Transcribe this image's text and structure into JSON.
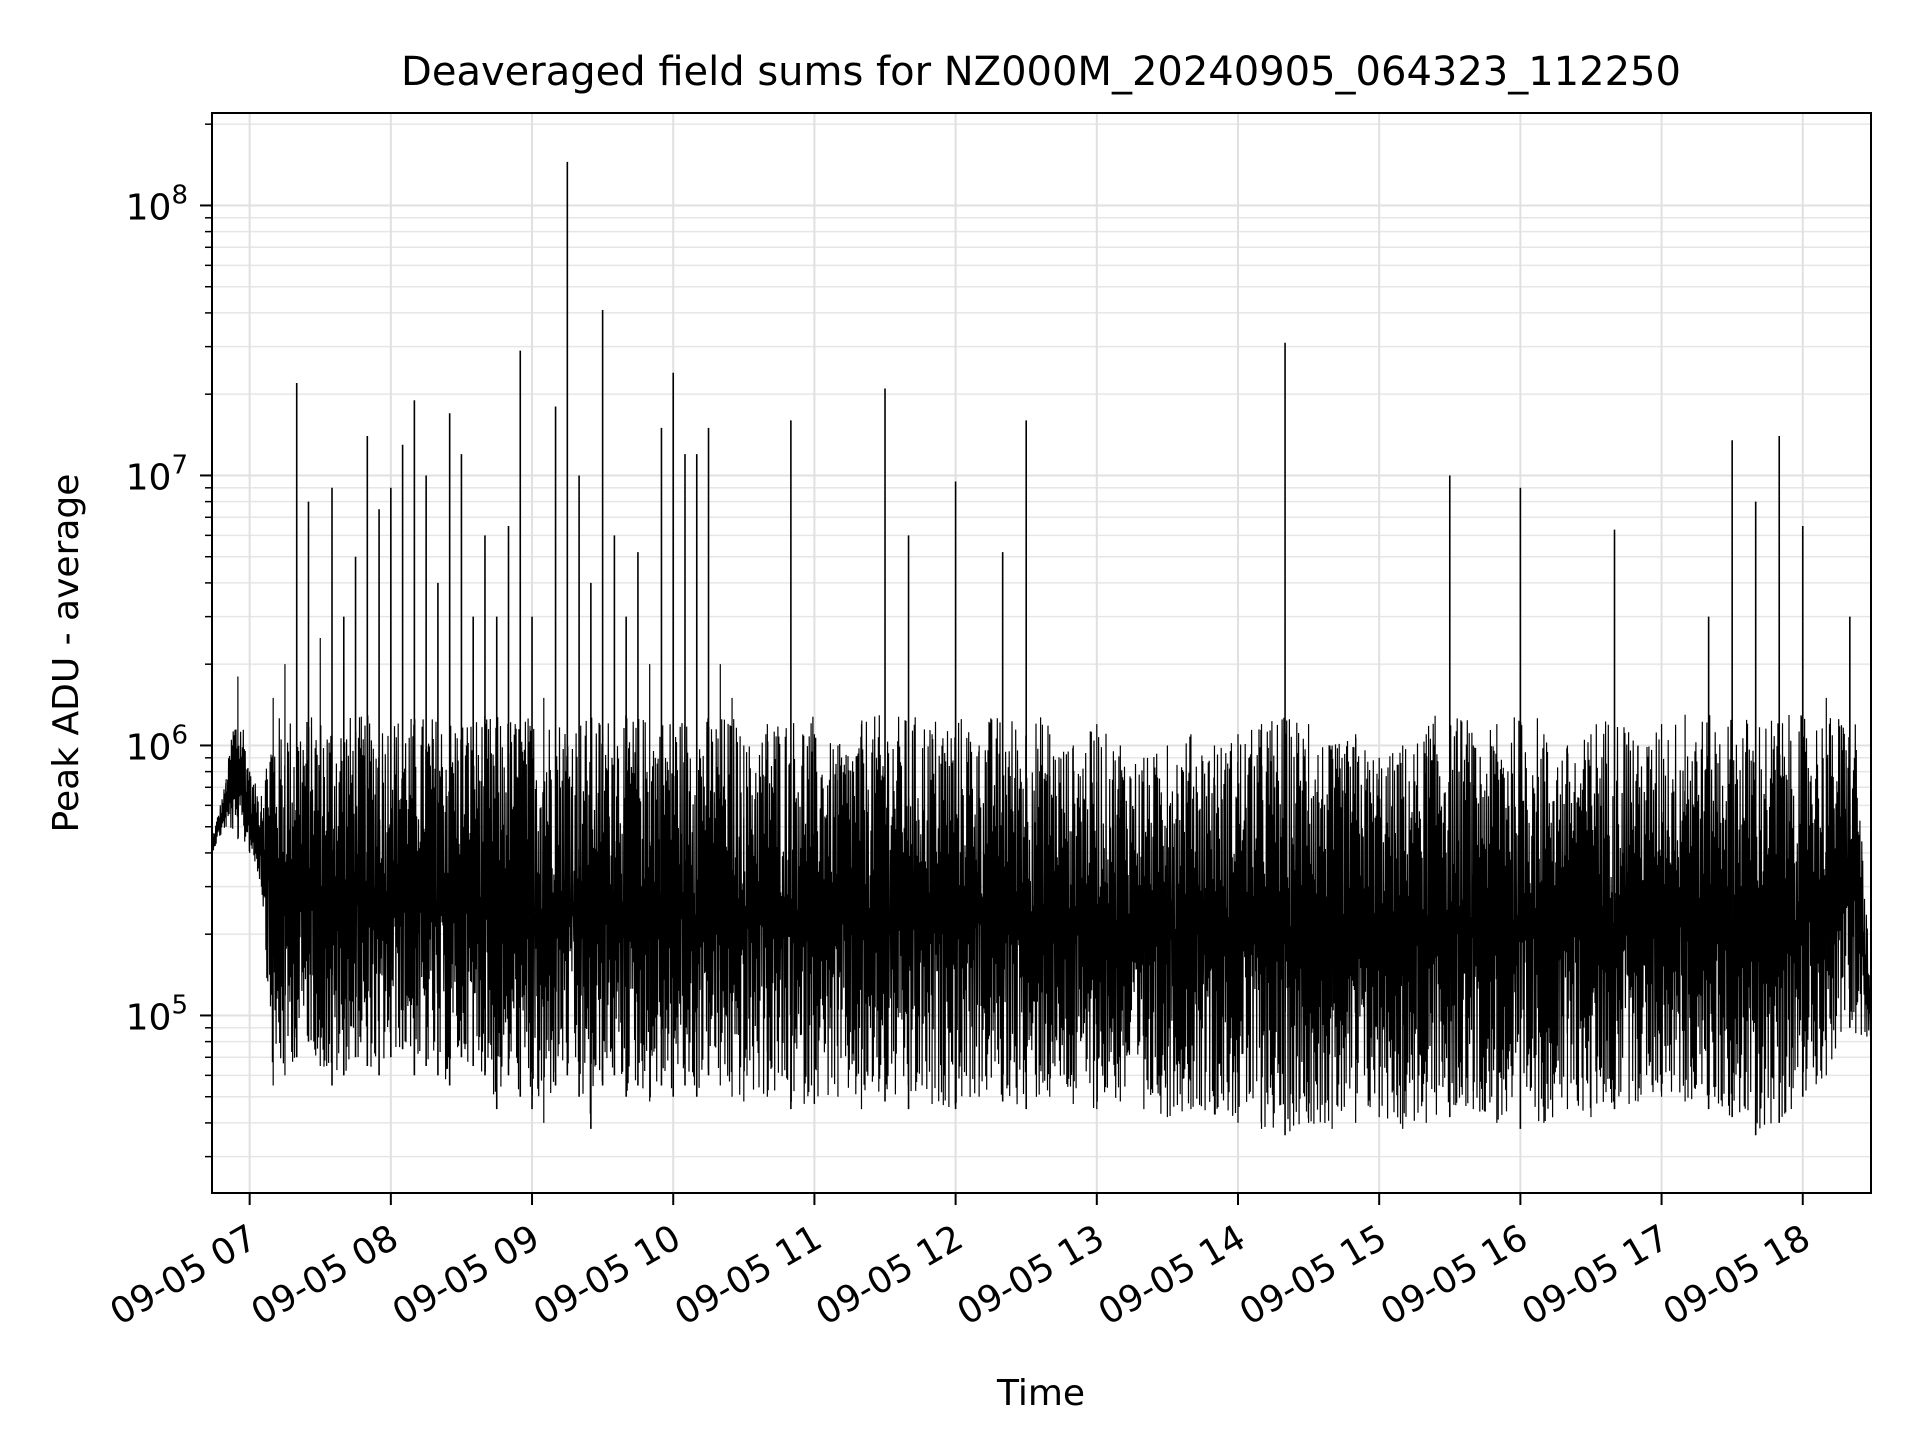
{
  "chart_data": {
    "type": "line",
    "title": "Deaveraged field sums for NZ000M_20240905_064323_112250",
    "xlabel": "Time",
    "ylabel": "Peak ADU - average",
    "yscale": "log",
    "ylim": [
      22000,
      220000000
    ],
    "xlim": [
      "09-05 06:44",
      "09-05 18:29"
    ],
    "x_ticks": [
      "09-05 07",
      "09-05 08",
      "09-05 09",
      "09-05 10",
      "09-05 11",
      "09-05 12",
      "09-05 13",
      "09-05 14",
      "09-05 15",
      "09-05 16",
      "09-05 17",
      "09-05 18"
    ],
    "y_ticks": [
      {
        "base": "10",
        "exp": "5",
        "value": 100000
      },
      {
        "base": "10",
        "exp": "6",
        "value": 1000000
      },
      {
        "base": "10",
        "exp": "7",
        "value": 10000000
      },
      {
        "base": "10",
        "exp": "8",
        "value": 100000000
      }
    ],
    "grid": true,
    "line_color": "#000000",
    "series": [
      {
        "x": [
          "09-05 06:44",
          "09-05 06:50",
          "09-05 06:55",
          "09-05 07:00",
          "09-05 07:05",
          "09-05 07:10",
          "09-05 07:15",
          "09-05 07:20",
          "09-05 07:25",
          "09-05 07:30",
          "09-05 07:35",
          "09-05 07:40",
          "09-05 07:45",
          "09-05 07:50",
          "09-05 07:55",
          "09-05 08:00",
          "09-05 08:05",
          "09-05 08:10",
          "09-05 08:15",
          "09-05 08:20",
          "09-05 08:25",
          "09-05 08:30",
          "09-05 08:35",
          "09-05 08:40",
          "09-05 08:45",
          "09-05 08:50",
          "09-05 08:55",
          "09-05 09:00",
          "09-05 09:05",
          "09-05 09:10",
          "09-05 09:15",
          "09-05 09:20",
          "09-05 09:25",
          "09-05 09:30",
          "09-05 09:35",
          "09-05 09:40",
          "09-05 09:45",
          "09-05 09:50",
          "09-05 09:55",
          "09-05 10:00",
          "09-05 10:05",
          "09-05 10:10",
          "09-05 10:15",
          "09-05 10:20",
          "09-05 10:25",
          "09-05 10:30",
          "09-05 10:40",
          "09-05 10:50",
          "09-05 11:00",
          "09-05 11:10",
          "09-05 11:20",
          "09-05 11:30",
          "09-05 11:40",
          "09-05 11:50",
          "09-05 12:00",
          "09-05 12:10",
          "09-05 12:20",
          "09-05 12:30",
          "09-05 12:40",
          "09-05 12:50",
          "09-05 13:00",
          "09-05 13:10",
          "09-05 13:20",
          "09-05 13:30",
          "09-05 13:40",
          "09-05 13:50",
          "09-05 14:00",
          "09-05 14:10",
          "09-05 14:20",
          "09-05 14:30",
          "09-05 14:40",
          "09-05 14:50",
          "09-05 15:00",
          "09-05 15:10",
          "09-05 15:20",
          "09-05 15:30",
          "09-05 15:40",
          "09-05 15:50",
          "09-05 16:00",
          "09-05 16:10",
          "09-05 16:20",
          "09-05 16:30",
          "09-05 16:40",
          "09-05 16:50",
          "09-05 17:00",
          "09-05 17:10",
          "09-05 17:20",
          "09-05 17:30",
          "09-05 17:40",
          "09-05 17:50",
          "09-05 18:00",
          "09-05 18:10",
          "09-05 18:20",
          "09-05 18:29"
        ],
        "y": [
          450000,
          750000,
          1800000,
          800000,
          650000,
          1500000,
          2000000,
          22000000,
          8000000,
          2500000,
          9000000,
          3000000,
          5000000,
          14000000,
          7500000,
          9000000,
          13000000,
          19000000,
          10000000,
          4000000,
          17000000,
          12000000,
          3000000,
          6000000,
          3000000,
          6500000,
          29000000,
          3000000,
          1500000,
          18000000,
          145000000,
          10000000,
          4000000,
          41000000,
          6000000,
          3000000,
          5200000,
          2000000,
          15000000,
          24000000,
          12000000,
          12000000,
          15000000,
          2000000,
          1500000,
          1000000,
          1200000,
          16000000,
          1100000,
          1000000,
          1200000,
          21000000,
          6000000,
          1100000,
          9500000,
          1000000,
          5200000,
          16000000,
          1100000,
          1000000,
          1200000,
          1000000,
          900000,
          1000000,
          1100000,
          1000000,
          1100000,
          1200000,
          31000000,
          1200000,
          1000000,
          1100000,
          900000,
          1000000,
          1100000,
          10000000,
          1000000,
          1200000,
          9000000,
          1100000,
          1000000,
          1100000,
          6300000,
          1000000,
          1200000,
          1300000,
          3000000,
          13500000,
          8000000,
          14000000,
          6500000,
          1500000,
          3000000,
          120000
        ],
        "y_low": [
          400000,
          500000,
          450000,
          400000,
          300000,
          55000,
          60000,
          70000,
          80000,
          65000,
          55000,
          60000,
          70000,
          65000,
          60000,
          70000,
          75000,
          60000,
          65000,
          60000,
          55000,
          70000,
          65000,
          60000,
          45000,
          60000,
          50000,
          45000,
          40000,
          55000,
          60000,
          50000,
          38000,
          55000,
          60000,
          50000,
          55000,
          48000,
          55000,
          50000,
          55000,
          50000,
          60000,
          55000,
          50000,
          48000,
          50000,
          45000,
          47000,
          50000,
          45000,
          48000,
          45000,
          47000,
          45000,
          50000,
          48000,
          45000,
          50000,
          47000,
          45000,
          48000,
          45000,
          42000,
          45000,
          43000,
          40000,
          38000,
          36000,
          40000,
          38000,
          40000,
          42000,
          38000,
          40000,
          42000,
          45000,
          40000,
          38000,
          40000,
          45000,
          42000,
          45000,
          48000,
          50000,
          48000,
          45000,
          42000,
          36000,
          40000,
          50000,
          60000,
          90000,
          75000
        ]
      }
    ]
  }
}
